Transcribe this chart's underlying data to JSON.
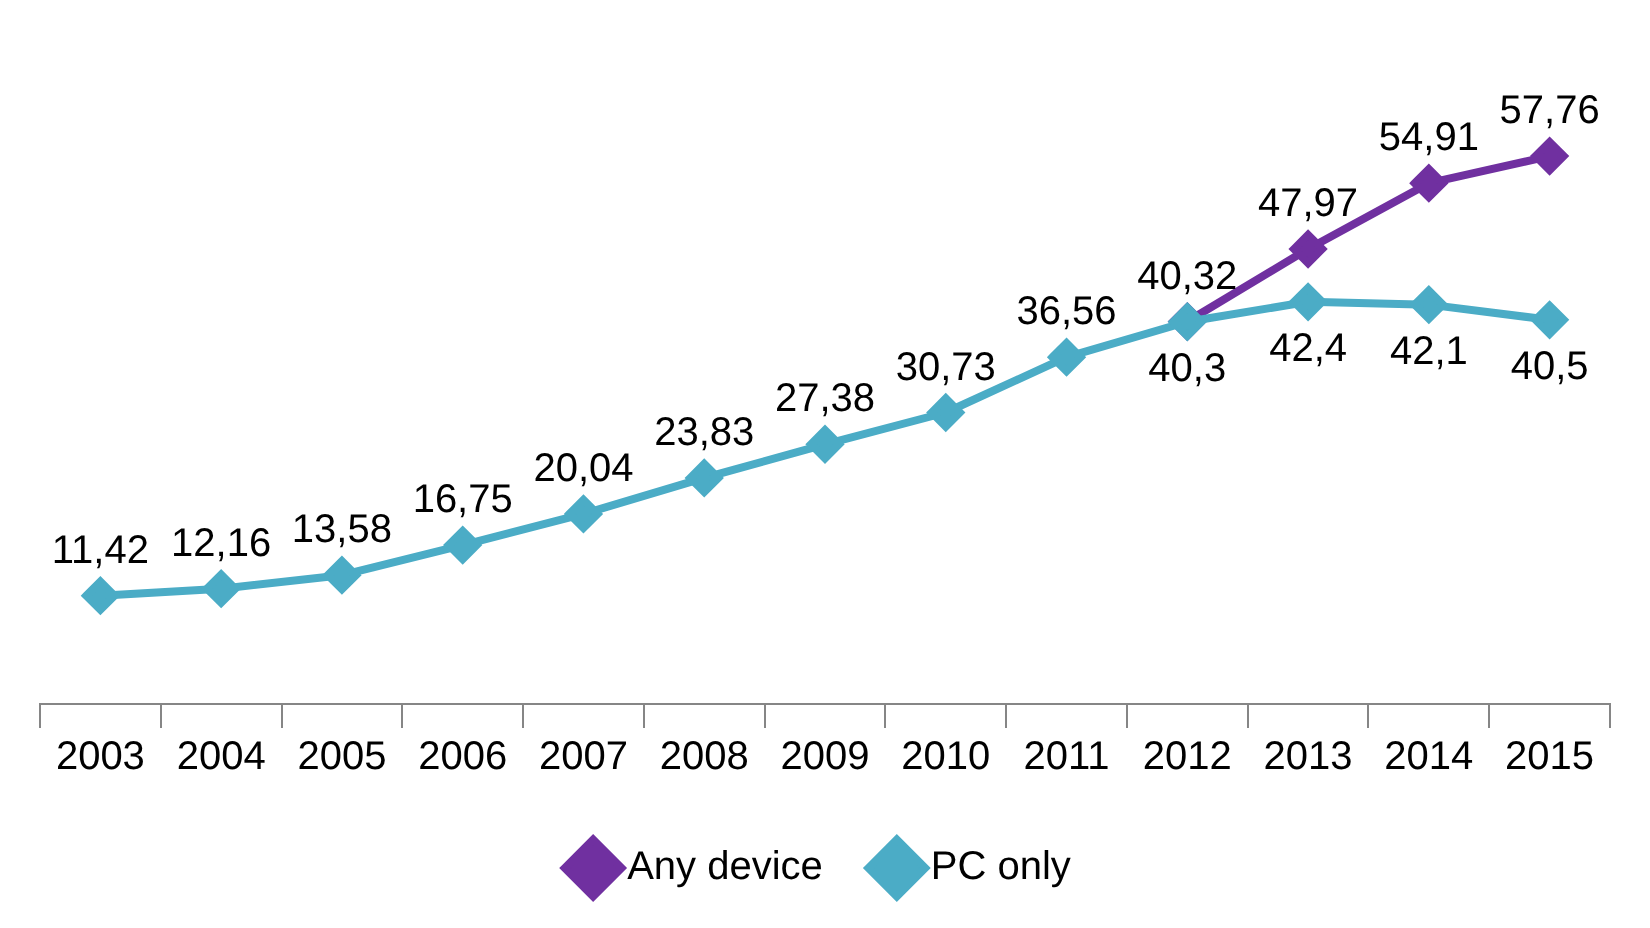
{
  "chart_data": {
    "type": "line",
    "categories": [
      "2003",
      "2004",
      "2005",
      "2006",
      "2007",
      "2008",
      "2009",
      "2010",
      "2011",
      "2012",
      "2013",
      "2014",
      "2015"
    ],
    "series": [
      {
        "name": "Any device",
        "color": "#7030a0",
        "values": [
          null,
          null,
          null,
          null,
          null,
          null,
          null,
          null,
          null,
          40.32,
          47.97,
          54.91,
          57.76
        ],
        "value_labels": [
          null,
          null,
          null,
          null,
          null,
          null,
          null,
          null,
          null,
          "40,32",
          "47,97",
          "54,91",
          "57,76"
        ]
      },
      {
        "name": "PC only",
        "color": "#4bacc6",
        "values": [
          11.42,
          12.16,
          13.58,
          16.75,
          20.04,
          23.83,
          27.38,
          30.73,
          36.56,
          40.3,
          42.4,
          42.1,
          40.5
        ],
        "value_labels": [
          "11,42",
          "12,16",
          "13,58",
          "16,75",
          "20,04",
          "23,83",
          "27,38",
          "30,73",
          "36,56",
          "40,3",
          "42,4",
          "42,1",
          "40,5"
        ]
      }
    ],
    "marker": "diamond",
    "line_style": "solid",
    "legend": "bottom",
    "grid": false
  }
}
